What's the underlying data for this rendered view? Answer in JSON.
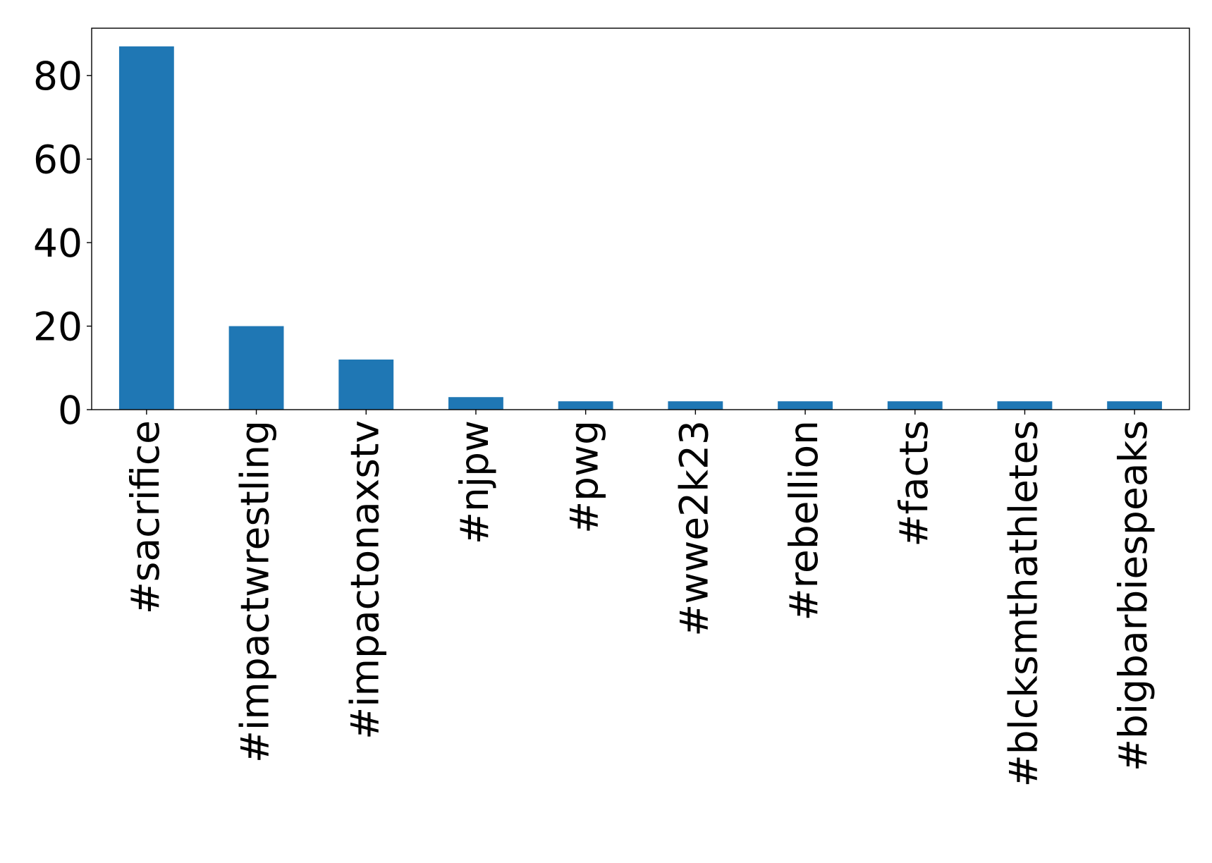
{
  "chart_data": {
    "type": "bar",
    "title": "",
    "xlabel": "",
    "ylabel": "",
    "categories": [
      "#sacrifice",
      "#impactwrestling",
      "#impactonaxstv",
      "#njpw",
      "#pwg",
      "#wwe2k23",
      "#rebellion",
      "#facts",
      "#blcksmthathletes",
      "#bigbarbiespeaks"
    ],
    "values": [
      87,
      20,
      12,
      3,
      2,
      2,
      2,
      2,
      2,
      2
    ],
    "ylim": [
      0,
      91.35
    ],
    "yticks": [
      0,
      20,
      40,
      60,
      80
    ],
    "grid": false,
    "legend": null,
    "colors": {
      "bar": "#1f77b4",
      "axis": "#000000",
      "background": "#ffffff"
    }
  }
}
